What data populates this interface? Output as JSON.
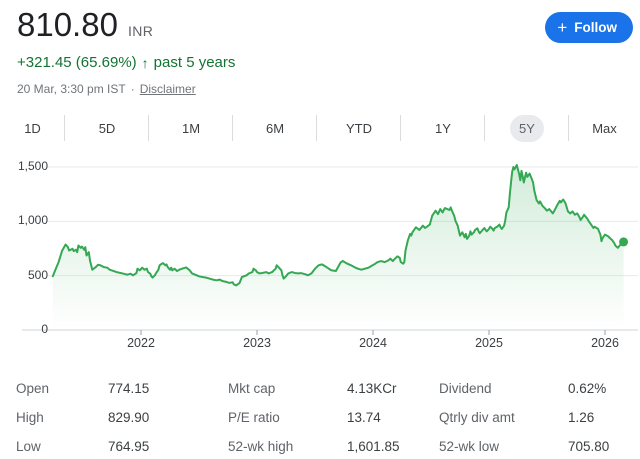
{
  "header": {
    "price": "810.80",
    "currency": "INR",
    "change": "+321.45 (65.69%)",
    "change_arrow": "↑",
    "change_period": "past 5 years",
    "timestamp": "20 Mar, 3:30 pm IST",
    "separator": "·",
    "disclaimer": "Disclaimer",
    "follow": {
      "plus_icon": "+",
      "label": "Follow"
    }
  },
  "range_tabs": [
    {
      "label": "1D",
      "selected": false
    },
    {
      "label": "5D",
      "selected": false
    },
    {
      "label": "1M",
      "selected": false
    },
    {
      "label": "6M",
      "selected": false
    },
    {
      "label": "YTD",
      "selected": false
    },
    {
      "label": "1Y",
      "selected": false
    },
    {
      "label": "5Y",
      "selected": true
    },
    {
      "label": "Max",
      "selected": false
    }
  ],
  "chart_data": {
    "type": "line",
    "title": "Stock price, past 5 years",
    "xlabel": "",
    "ylabel": "",
    "xlim": [
      2021.0,
      2026.28
    ],
    "ylim": [
      0,
      1630
    ],
    "grid": true,
    "line_color": "#34a853",
    "fill_top_color": "rgba(52,168,83,0.22)",
    "fill_bottom_color": "rgba(52,168,83,0)",
    "last_value": 810.8,
    "y_ticks": [
      {
        "value": 1500,
        "label": "1,500"
      },
      {
        "value": 1000,
        "label": "1,000"
      },
      {
        "value": 500,
        "label": "500"
      },
      {
        "value": 0,
        "label": "0"
      }
    ],
    "x_ticks": [
      {
        "value": 2022,
        "label": "2022"
      },
      {
        "value": 2023,
        "label": "2023"
      },
      {
        "value": 2024,
        "label": "2024"
      },
      {
        "value": 2025,
        "label": "2025"
      },
      {
        "value": 2026,
        "label": "2026"
      }
    ],
    "points": [
      [
        2021.24,
        495
      ],
      [
        2021.26,
        550
      ],
      [
        2021.29,
        625
      ],
      [
        2021.32,
        730
      ],
      [
        2021.35,
        787
      ],
      [
        2021.37,
        762
      ],
      [
        2021.38,
        732
      ],
      [
        2021.41,
        747
      ],
      [
        2021.42,
        726
      ],
      [
        2021.44,
        738
      ],
      [
        2021.45,
        716
      ],
      [
        2021.46,
        778
      ],
      [
        2021.48,
        756
      ],
      [
        2021.49,
        768
      ],
      [
        2021.51,
        738
      ],
      [
        2021.52,
        762
      ],
      [
        2021.53,
        686
      ],
      [
        2021.55,
        716
      ],
      [
        2021.56,
        640
      ],
      [
        2021.58,
        555
      ],
      [
        2021.61,
        579
      ],
      [
        2021.63,
        601
      ],
      [
        2021.65,
        595
      ],
      [
        2021.68,
        579
      ],
      [
        2021.71,
        573
      ],
      [
        2021.73,
        555
      ],
      [
        2021.79,
        533
      ],
      [
        2021.85,
        518
      ],
      [
        2021.88,
        509
      ],
      [
        2021.91,
        518
      ],
      [
        2021.93,
        503
      ],
      [
        2021.96,
        524
      ],
      [
        2021.97,
        564
      ],
      [
        2021.99,
        549
      ],
      [
        2022.01,
        573
      ],
      [
        2022.03,
        555
      ],
      [
        2022.05,
        564
      ],
      [
        2022.06,
        533
      ],
      [
        2022.08,
        518
      ],
      [
        2022.09,
        494
      ],
      [
        2022.1,
        482
      ],
      [
        2022.12,
        503
      ],
      [
        2022.13,
        524
      ],
      [
        2022.15,
        555
      ],
      [
        2022.16,
        595
      ],
      [
        2022.18,
        610
      ],
      [
        2022.19,
        616
      ],
      [
        2022.21,
        595
      ],
      [
        2022.22,
        604
      ],
      [
        2022.23,
        579
      ],
      [
        2022.25,
        555
      ],
      [
        2022.26,
        573
      ],
      [
        2022.27,
        549
      ],
      [
        2022.29,
        564
      ],
      [
        2022.31,
        543
      ],
      [
        2022.33,
        555
      ],
      [
        2022.36,
        567
      ],
      [
        2022.39,
        576
      ],
      [
        2022.42,
        549
      ],
      [
        2022.44,
        521
      ],
      [
        2022.48,
        503
      ],
      [
        2022.5,
        494
      ],
      [
        2022.53,
        488
      ],
      [
        2022.56,
        482
      ],
      [
        2022.59,
        473
      ],
      [
        2022.62,
        464
      ],
      [
        2022.65,
        457
      ],
      [
        2022.68,
        464
      ],
      [
        2022.7,
        451
      ],
      [
        2022.74,
        442
      ],
      [
        2022.76,
        433
      ],
      [
        2022.79,
        439
      ],
      [
        2022.8,
        421
      ],
      [
        2022.82,
        410
      ],
      [
        2022.85,
        433
      ],
      [
        2022.87,
        488
      ],
      [
        2022.91,
        503
      ],
      [
        2022.93,
        521
      ],
      [
        2022.96,
        533
      ],
      [
        2022.97,
        564
      ],
      [
        2022.99,
        549
      ],
      [
        2023.0,
        533
      ],
      [
        2023.02,
        521
      ],
      [
        2023.04,
        524
      ],
      [
        2023.08,
        533
      ],
      [
        2023.1,
        521
      ],
      [
        2023.13,
        533
      ],
      [
        2023.16,
        564
      ],
      [
        2023.17,
        595
      ],
      [
        2023.19,
        573
      ],
      [
        2023.21,
        549
      ],
      [
        2023.22,
        503
      ],
      [
        2023.23,
        473
      ],
      [
        2023.25,
        494
      ],
      [
        2023.27,
        521
      ],
      [
        2023.3,
        533
      ],
      [
        2023.33,
        524
      ],
      [
        2023.36,
        521
      ],
      [
        2023.38,
        524
      ],
      [
        2023.42,
        512
      ],
      [
        2023.44,
        503
      ],
      [
        2023.47,
        521
      ],
      [
        2023.5,
        564
      ],
      [
        2023.53,
        595
      ],
      [
        2023.56,
        604
      ],
      [
        2023.59,
        585
      ],
      [
        2023.62,
        564
      ],
      [
        2023.64,
        549
      ],
      [
        2023.68,
        543
      ],
      [
        2023.72,
        620
      ],
      [
        2023.74,
        635
      ],
      [
        2023.77,
        615
      ],
      [
        2023.81,
        595
      ],
      [
        2023.85,
        573
      ],
      [
        2023.87,
        564
      ],
      [
        2023.9,
        555
      ],
      [
        2023.93,
        564
      ],
      [
        2023.96,
        573
      ],
      [
        2023.98,
        585
      ],
      [
        2024.02,
        610
      ],
      [
        2024.04,
        625
      ],
      [
        2024.07,
        634
      ],
      [
        2024.1,
        625
      ],
      [
        2024.13,
        640
      ],
      [
        2024.15,
        656
      ],
      [
        2024.17,
        634
      ],
      [
        2024.19,
        656
      ],
      [
        2024.21,
        677
      ],
      [
        2024.23,
        665
      ],
      [
        2024.24,
        625
      ],
      [
        2024.26,
        610
      ],
      [
        2024.27,
        625
      ],
      [
        2024.28,
        732
      ],
      [
        2024.3,
        823
      ],
      [
        2024.32,
        884
      ],
      [
        2024.33,
        869
      ],
      [
        2024.34,
        899
      ],
      [
        2024.37,
        945
      ],
      [
        2024.4,
        921
      ],
      [
        2024.43,
        960
      ],
      [
        2024.45,
        939
      ],
      [
        2024.49,
        970
      ],
      [
        2024.51,
        1052
      ],
      [
        2024.54,
        1098
      ],
      [
        2024.56,
        1067
      ],
      [
        2024.58,
        1113
      ],
      [
        2024.6,
        1082
      ],
      [
        2024.62,
        1122
      ],
      [
        2024.66,
        1104
      ],
      [
        2024.67,
        1128
      ],
      [
        2024.68,
        1098
      ],
      [
        2024.7,
        1052
      ],
      [
        2024.71,
        1006
      ],
      [
        2024.73,
        960
      ],
      [
        2024.74,
        915
      ],
      [
        2024.75,
        869
      ],
      [
        2024.77,
        899
      ],
      [
        2024.79,
        854
      ],
      [
        2024.8,
        884
      ],
      [
        2024.81,
        838
      ],
      [
        2024.83,
        869
      ],
      [
        2024.84,
        908
      ],
      [
        2024.85,
        878
      ],
      [
        2024.87,
        899
      ],
      [
        2024.88,
        921
      ],
      [
        2024.9,
        936
      ],
      [
        2024.91,
        908
      ],
      [
        2024.92,
        890
      ],
      [
        2024.94,
        915
      ],
      [
        2024.96,
        939
      ],
      [
        2024.97,
        921
      ],
      [
        2024.98,
        908
      ],
      [
        2025.0,
        930
      ],
      [
        2025.01,
        951
      ],
      [
        2025.03,
        930
      ],
      [
        2025.04,
        915
      ],
      [
        2025.05,
        939
      ],
      [
        2025.07,
        951
      ],
      [
        2025.09,
        970
      ],
      [
        2025.1,
        945
      ],
      [
        2025.11,
        930
      ],
      [
        2025.13,
        960
      ],
      [
        2025.14,
        1006
      ],
      [
        2025.15,
        1082
      ],
      [
        2025.17,
        1128
      ],
      [
        2025.18,
        1256
      ],
      [
        2025.19,
        1357
      ],
      [
        2025.2,
        1457
      ],
      [
        2025.21,
        1500
      ],
      [
        2025.22,
        1479
      ],
      [
        2025.24,
        1518
      ],
      [
        2025.26,
        1433
      ],
      [
        2025.27,
        1378
      ],
      [
        2025.28,
        1464
      ],
      [
        2025.29,
        1418
      ],
      [
        2025.3,
        1357
      ],
      [
        2025.32,
        1448
      ],
      [
        2025.33,
        1409
      ],
      [
        2025.35,
        1439
      ],
      [
        2025.37,
        1387
      ],
      [
        2025.38,
        1357
      ],
      [
        2025.39,
        1287
      ],
      [
        2025.41,
        1195
      ],
      [
        2025.43,
        1164
      ],
      [
        2025.44,
        1183
      ],
      [
        2025.46,
        1143
      ],
      [
        2025.48,
        1122
      ],
      [
        2025.5,
        1098
      ],
      [
        2025.52,
        1113
      ],
      [
        2025.55,
        1073
      ],
      [
        2025.56,
        1091
      ],
      [
        2025.59,
        1152
      ],
      [
        2025.61,
        1189
      ],
      [
        2025.62,
        1174
      ],
      [
        2025.64,
        1201
      ],
      [
        2025.66,
        1164
      ],
      [
        2025.68,
        1091
      ],
      [
        2025.7,
        1073
      ],
      [
        2025.72,
        1091
      ],
      [
        2025.74,
        1061
      ],
      [
        2025.76,
        1073
      ],
      [
        2025.78,
        1037
      ],
      [
        2025.79,
        1012
      ],
      [
        2025.81,
        1043
      ],
      [
        2025.82,
        1061
      ],
      [
        2025.85,
        1021
      ],
      [
        2025.86,
        1000
      ],
      [
        2025.88,
        970
      ],
      [
        2025.9,
        939
      ],
      [
        2025.91,
        951
      ],
      [
        2025.94,
        930
      ],
      [
        2025.96,
        878
      ],
      [
        2025.97,
        817
      ],
      [
        2025.98,
        848
      ],
      [
        2026.0,
        878
      ],
      [
        2026.03,
        860
      ],
      [
        2026.04,
        848
      ],
      [
        2026.06,
        829
      ],
      [
        2026.08,
        799
      ],
      [
        2026.09,
        777
      ],
      [
        2026.11,
        756
      ],
      [
        2026.12,
        768
      ],
      [
        2026.14,
        793
      ],
      [
        2026.16,
        810.8
      ]
    ]
  },
  "stats": {
    "columns": [
      {
        "rows": [
          {
            "label": "Open",
            "value": "774.15"
          },
          {
            "label": "High",
            "value": "829.90"
          },
          {
            "label": "Low",
            "value": "764.95"
          }
        ]
      },
      {
        "rows": [
          {
            "label": "Mkt cap",
            "value": "4.13KCr"
          },
          {
            "label": "P/E ratio",
            "value": "13.74"
          },
          {
            "label": "52-wk high",
            "value": "1,601.85"
          }
        ]
      },
      {
        "rows": [
          {
            "label": "Dividend",
            "value": "0.62%"
          },
          {
            "label": "Qtrly div amt",
            "value": "1.26"
          },
          {
            "label": "52-wk low",
            "value": "705.80"
          }
        ]
      }
    ]
  },
  "colors": {
    "accent_blue": "#1a73e8",
    "positive_green_text": "#137333",
    "line_green": "#34a853",
    "grid_gray": "#e8eaed",
    "axis_gray": "#dadce0",
    "text_primary": "#202124",
    "text_secondary": "#5f6368"
  }
}
